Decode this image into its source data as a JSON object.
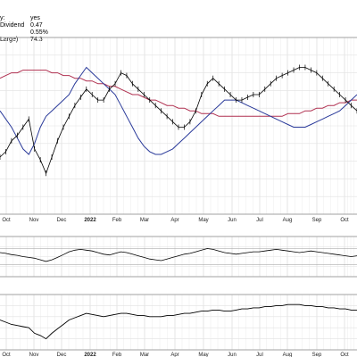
{
  "info_lines": [
    {
      "label": "y:",
      "value": "yes"
    },
    {
      "label": "Dividend",
      "value": "0.47"
    },
    {
      "label": "",
      "value": "0.55%"
    },
    {
      "label": "Large)",
      "value": "74.3"
    }
  ],
  "chart_data": {
    "type": "line",
    "x_tick_labels": [
      "Oct",
      "Nov",
      "Dec",
      "2022",
      "Feb",
      "Mar",
      "Apr",
      "May",
      "Jun",
      "Jul",
      "Aug",
      "Sep",
      "Oct"
    ],
    "x_tick_bold": [
      false,
      false,
      false,
      true,
      false,
      false,
      false,
      false,
      false,
      false,
      false,
      false,
      false
    ],
    "grid": true,
    "price_series": [
      41,
      43,
      47,
      49,
      52,
      55,
      44,
      40,
      35,
      41,
      47,
      52,
      56,
      60,
      63,
      66,
      64,
      62,
      62,
      66,
      68,
      72,
      71,
      68,
      66,
      64,
      62,
      60,
      58,
      56,
      54,
      52,
      52,
      54,
      58,
      64,
      68,
      70,
      68,
      66,
      64,
      62,
      62,
      63,
      64,
      64,
      66,
      68,
      70,
      71,
      72,
      73,
      74,
      74,
      73,
      72,
      70,
      68,
      66,
      64,
      62,
      60,
      58
    ],
    "ma_short_series": [
      58,
      55,
      52,
      48,
      44,
      42,
      46,
      52,
      56,
      58,
      60,
      62,
      64,
      68,
      71,
      74,
      72,
      70,
      68,
      66,
      64,
      60,
      56,
      52,
      48,
      45,
      43,
      42,
      42,
      43,
      44,
      46,
      48,
      50,
      52,
      54,
      56,
      58,
      60,
      62,
      62,
      62,
      61,
      60,
      59,
      58,
      57,
      56,
      55,
      54,
      53,
      52,
      52,
      52,
      53,
      54,
      55,
      56,
      57,
      58,
      60,
      62,
      64
    ],
    "ma_long_series": [
      70,
      71,
      72,
      72,
      73,
      73,
      73,
      73,
      73,
      72,
      72,
      71,
      71,
      70,
      70,
      69,
      69,
      68,
      68,
      67,
      67,
      66,
      65,
      64,
      64,
      63,
      62,
      62,
      61,
      60,
      60,
      59,
      59,
      58,
      58,
      57,
      57,
      57,
      56,
      56,
      56,
      56,
      56,
      56,
      56,
      56,
      56,
      56,
      56,
      56,
      57,
      57,
      57,
      58,
      58,
      59,
      59,
      60,
      60,
      61,
      61,
      62,
      62
    ],
    "oscillator_series": [
      60,
      58,
      55,
      53,
      50,
      48,
      46,
      42,
      38,
      42,
      48,
      55,
      62,
      66,
      68,
      66,
      64,
      60,
      56,
      54,
      58,
      62,
      60,
      56,
      52,
      48,
      44,
      42,
      40,
      44,
      48,
      52,
      56,
      58,
      62,
      66,
      70,
      68,
      64,
      60,
      58,
      56,
      58,
      60,
      62,
      62,
      64,
      66,
      68,
      66,
      64,
      62,
      60,
      62,
      64,
      62,
      60,
      58,
      56,
      54,
      52,
      50,
      52
    ],
    "oscillator_levels": [
      70,
      30
    ],
    "relative_series": [
      52,
      50,
      48,
      47,
      46,
      45,
      40,
      38,
      35,
      40,
      44,
      48,
      52,
      54,
      56,
      58,
      57,
      56,
      55,
      56,
      57,
      58,
      58,
      57,
      56,
      56,
      55,
      55,
      55,
      56,
      56,
      57,
      58,
      58,
      59,
      60,
      60,
      61,
      61,
      60,
      60,
      61,
      62,
      62,
      63,
      63,
      64,
      64,
      65,
      65,
      66,
      66,
      66,
      65,
      65,
      64,
      64,
      63,
      63,
      62,
      62,
      61,
      61
    ]
  }
}
